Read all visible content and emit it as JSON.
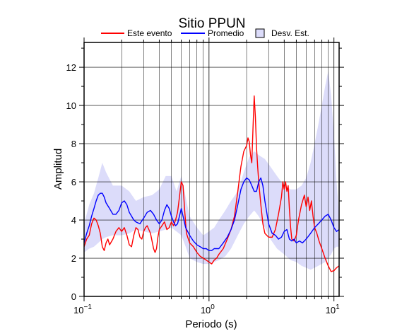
{
  "chart_data": {
    "type": "line",
    "title": "Sitio PPUN",
    "xlabel": "Periodo (s)",
    "ylabel": "Amplitud",
    "x_scale": "log",
    "xlim": [
      0.1,
      11
    ],
    "ylim": [
      0,
      13.3
    ],
    "x_ticks": [
      0.1,
      1,
      10
    ],
    "x_tick_labels": [
      [
        "10",
        "−1"
      ],
      [
        "10",
        "0"
      ],
      [
        "10",
        "1"
      ]
    ],
    "y_ticks": [
      0,
      2,
      4,
      6,
      8,
      10,
      12
    ],
    "y_tick_labels": [
      "0",
      "2",
      "4",
      "6",
      "8",
      "10",
      "12"
    ],
    "grid": true,
    "legend": {
      "placement": "top",
      "entries": [
        {
          "label": "Este evento",
          "color": "#ff0000",
          "kind": "line"
        },
        {
          "label": "Promedio",
          "color": "#0000ff",
          "kind": "line"
        },
        {
          "label": "Desv. Est.",
          "color": "#dcdcfa",
          "kind": "patch"
        }
      ]
    },
    "band": {
      "name": "Desv. Est.",
      "color": "#dcdcfa",
      "x": [
        0.1,
        0.11,
        0.12,
        0.13,
        0.14,
        0.15,
        0.17,
        0.2,
        0.23,
        0.26,
        0.3,
        0.35,
        0.4,
        0.45,
        0.5,
        0.55,
        0.6,
        0.65,
        0.7,
        0.8,
        0.9,
        1.0,
        1.1,
        1.2,
        1.35,
        1.5,
        1.7,
        1.9,
        2.1,
        2.3,
        2.5,
        2.8,
        3.1,
        3.5,
        4.0,
        4.5,
        5.0,
        5.5,
        6.0,
        6.5,
        7.0,
        7.5,
        8.0,
        8.5,
        9.0,
        9.5,
        10.0,
        10.5,
        11.0
      ],
      "upper": [
        3.8,
        4.8,
        5.4,
        6.2,
        7.0,
        6.5,
        5.8,
        5.8,
        5.5,
        5.0,
        5.2,
        5.3,
        5.6,
        6.3,
        6.3,
        5.5,
        6.3,
        5.2,
        4.2,
        3.6,
        3.2,
        3.4,
        3.6,
        4.0,
        4.5,
        5.0,
        5.5,
        6.5,
        7.3,
        7.6,
        7.4,
        7.2,
        6.8,
        6.3,
        5.8,
        5.6,
        5.6,
        5.8,
        6.2,
        7.0,
        8.0,
        9.0,
        10.0,
        11.0,
        11.8,
        10.5,
        8.5,
        6.0,
        4.2
      ],
      "lower": [
        2.3,
        2.5,
        2.6,
        2.8,
        3.0,
        3.1,
        3.2,
        3.2,
        3.3,
        3.5,
        3.4,
        3.3,
        3.4,
        3.5,
        3.6,
        3.4,
        3.2,
        2.6,
        2.0,
        1.8,
        1.7,
        1.7,
        1.8,
        1.9,
        2.1,
        2.5,
        3.2,
        3.8,
        4.2,
        4.5,
        4.2,
        3.6,
        3.0,
        2.5,
        2.2,
        1.9,
        1.8,
        1.6,
        1.5,
        1.4,
        1.5,
        1.6,
        1.7,
        1.8,
        2.0,
        2.2,
        2.5,
        2.6,
        2.6
      ]
    },
    "series": [
      {
        "name": "Este evento",
        "color": "#ff0000",
        "x": [
          0.1,
          0.105,
          0.11,
          0.115,
          0.12,
          0.125,
          0.13,
          0.135,
          0.14,
          0.145,
          0.15,
          0.155,
          0.16,
          0.17,
          0.18,
          0.19,
          0.2,
          0.21,
          0.22,
          0.23,
          0.24,
          0.25,
          0.26,
          0.27,
          0.28,
          0.29,
          0.3,
          0.31,
          0.32,
          0.33,
          0.34,
          0.35,
          0.36,
          0.37,
          0.38,
          0.39,
          0.4,
          0.42,
          0.44,
          0.46,
          0.48,
          0.5,
          0.52,
          0.54,
          0.56,
          0.58,
          0.6,
          0.62,
          0.64,
          0.66,
          0.7,
          0.75,
          0.8,
          0.85,
          0.9,
          0.95,
          1.0,
          1.05,
          1.1,
          1.15,
          1.2,
          1.3,
          1.4,
          1.5,
          1.6,
          1.7,
          1.8,
          1.9,
          2.0,
          2.05,
          2.1,
          2.15,
          2.2,
          2.25,
          2.3,
          2.35,
          2.4,
          2.45,
          2.5,
          2.6,
          2.7,
          2.8,
          3.0,
          3.2,
          3.4,
          3.6,
          3.8,
          3.9,
          4.0,
          4.1,
          4.2,
          4.3,
          4.4,
          4.5,
          4.6,
          4.8,
          5.0,
          5.2,
          5.5,
          5.8,
          6.0,
          6.2,
          6.4,
          6.6,
          6.8,
          7.0,
          7.3,
          7.6,
          8.0,
          8.5,
          9.0,
          9.5,
          10.0,
          10.5,
          11.0
        ],
        "values": [
          2.6,
          3.0,
          3.2,
          3.8,
          4.1,
          4.0,
          3.7,
          3.3,
          2.6,
          2.4,
          2.8,
          3.0,
          2.7,
          3.0,
          3.4,
          3.6,
          3.4,
          3.6,
          3.2,
          2.7,
          2.6,
          3.2,
          3.6,
          3.5,
          3.1,
          3.0,
          3.4,
          3.6,
          3.7,
          3.5,
          3.3,
          2.9,
          2.5,
          2.3,
          2.5,
          3.1,
          3.5,
          3.7,
          3.9,
          3.5,
          3.6,
          3.9,
          3.7,
          4.0,
          4.4,
          5.2,
          6.0,
          5.8,
          4.4,
          3.3,
          2.8,
          2.6,
          2.3,
          2.1,
          2.0,
          1.9,
          1.8,
          1.7,
          1.9,
          2.0,
          2.2,
          2.5,
          3.0,
          3.5,
          4.2,
          5.5,
          6.8,
          7.6,
          7.9,
          8.3,
          8.1,
          7.4,
          7.0,
          8.8,
          10.5,
          9.4,
          7.8,
          6.8,
          6.0,
          4.8,
          3.8,
          3.3,
          3.1,
          3.1,
          3.5,
          4.3,
          5.2,
          6.0,
          5.6,
          6.0,
          5.5,
          5.8,
          4.6,
          3.6,
          3.0,
          2.9,
          3.2,
          4.0,
          4.8,
          5.3,
          4.7,
          5.2,
          4.5,
          5.0,
          4.2,
          3.6,
          3.3,
          2.9,
          2.5,
          2.0,
          1.6,
          1.3,
          1.35,
          1.5,
          1.6
        ]
      },
      {
        "name": "Promedio",
        "color": "#0000ff",
        "x": [
          0.1,
          0.105,
          0.11,
          0.115,
          0.12,
          0.125,
          0.13,
          0.135,
          0.14,
          0.145,
          0.15,
          0.16,
          0.17,
          0.18,
          0.19,
          0.2,
          0.21,
          0.22,
          0.23,
          0.24,
          0.25,
          0.26,
          0.28,
          0.3,
          0.32,
          0.34,
          0.36,
          0.38,
          0.4,
          0.42,
          0.44,
          0.46,
          0.48,
          0.5,
          0.52,
          0.54,
          0.56,
          0.58,
          0.6,
          0.62,
          0.65,
          0.7,
          0.75,
          0.8,
          0.85,
          0.9,
          0.95,
          1.0,
          1.05,
          1.1,
          1.2,
          1.3,
          1.4,
          1.5,
          1.6,
          1.7,
          1.8,
          1.9,
          2.0,
          2.1,
          2.2,
          2.3,
          2.4,
          2.5,
          2.6,
          2.7,
          2.8,
          3.0,
          3.2,
          3.4,
          3.6,
          3.8,
          4.0,
          4.2,
          4.4,
          4.6,
          4.8,
          5.0,
          5.3,
          5.6,
          6.0,
          6.5,
          7.0,
          7.5,
          8.0,
          8.5,
          9.0,
          9.5,
          10.0,
          10.5,
          11.0
        ],
        "values": [
          2.8,
          3.3,
          3.7,
          4.2,
          4.6,
          5.0,
          5.3,
          5.4,
          5.4,
          5.2,
          4.9,
          4.6,
          4.3,
          4.3,
          4.5,
          4.9,
          5.0,
          4.8,
          4.4,
          4.2,
          4.0,
          3.9,
          3.8,
          4.1,
          4.4,
          4.5,
          4.3,
          4.0,
          3.8,
          4.0,
          4.5,
          4.8,
          4.6,
          4.2,
          3.9,
          3.7,
          3.8,
          4.2,
          4.6,
          4.2,
          3.6,
          3.2,
          2.9,
          2.7,
          2.6,
          2.5,
          2.5,
          2.4,
          2.4,
          2.5,
          2.5,
          2.8,
          3.1,
          3.5,
          4.0,
          4.8,
          5.6,
          6.0,
          6.2,
          6.1,
          5.8,
          5.5,
          5.5,
          6.0,
          6.2,
          5.8,
          5.0,
          3.8,
          3.3,
          3.2,
          3.0,
          3.1,
          3.4,
          3.5,
          3.0,
          2.9,
          3.0,
          2.8,
          2.9,
          2.8,
          3.0,
          3.3,
          3.6,
          3.8,
          4.0,
          4.2,
          4.3,
          4.0,
          3.6,
          3.4,
          3.5
        ]
      }
    ]
  }
}
